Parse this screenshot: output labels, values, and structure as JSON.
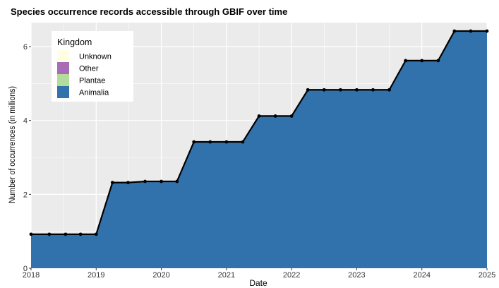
{
  "chart_data": {
    "type": "area",
    "title": "Species occurrence records accessible through GBIF over time",
    "xlabel": "Date",
    "ylabel": "Number of occurrences (in millions)",
    "xlim": [
      2018.0,
      2025.0
    ],
    "ylim": [
      0,
      6.65
    ],
    "x_ticks": [
      2018,
      2019,
      2020,
      2021,
      2022,
      2023,
      2024,
      2025
    ],
    "y_ticks": [
      0,
      2,
      4,
      6
    ],
    "x_tick_labels": [
      "2018",
      "2019",
      "2020",
      "2021",
      "2022",
      "2023",
      "2024",
      "2025"
    ],
    "y_tick_labels": [
      "0",
      "2",
      "4",
      "6"
    ],
    "grid": true,
    "legend": {
      "title": "Kingdom",
      "position": "top-left",
      "entries": [
        {
          "name": "Unknown",
          "color": "#FFFFE5"
        },
        {
          "name": "Other",
          "color": "#A86BB5"
        },
        {
          "name": "Plantae",
          "color": "#B2DB9C"
        },
        {
          "name": "Animalia",
          "color": "#3272AC"
        }
      ]
    },
    "x": [
      2018.0,
      2018.28,
      2018.53,
      2018.76,
      2019.0,
      2019.25,
      2019.49,
      2019.75,
      2020.0,
      2020.24,
      2020.5,
      2020.75,
      2021.0,
      2021.25,
      2021.5,
      2021.75,
      2022.0,
      2022.25,
      2022.5,
      2022.75,
      2023.0,
      2023.25,
      2023.5,
      2023.75,
      2024.0,
      2024.25,
      2024.5,
      2024.75,
      2025.0
    ],
    "series": [
      {
        "name": "Unknown",
        "values": [
          0,
          0,
          0,
          0,
          0,
          0,
          0,
          0,
          0,
          0,
          0,
          0,
          0,
          0,
          0,
          0,
          0,
          0,
          0,
          0,
          0,
          0,
          0,
          0,
          0,
          0,
          0,
          0,
          0
        ]
      },
      {
        "name": "Other",
        "values": [
          0,
          0,
          0,
          0,
          0,
          0,
          0,
          0,
          0,
          0,
          0,
          0,
          0,
          0,
          0,
          0,
          0,
          0,
          0,
          0,
          0,
          0,
          0,
          0,
          0,
          0,
          0,
          0,
          0
        ]
      },
      {
        "name": "Plantae",
        "values": [
          0,
          0,
          0,
          0,
          0,
          0,
          0,
          0,
          0,
          0,
          0,
          0,
          0,
          0,
          0,
          0,
          0,
          0,
          0,
          0,
          0,
          0,
          0,
          0,
          0,
          0,
          0,
          0,
          0
        ]
      },
      {
        "name": "Animalia",
        "values": [
          0.92,
          0.92,
          0.92,
          0.92,
          0.92,
          2.32,
          2.32,
          2.35,
          2.35,
          2.35,
          3.42,
          3.42,
          3.42,
          3.42,
          4.12,
          4.12,
          4.12,
          4.83,
          4.83,
          4.83,
          4.83,
          4.83,
          4.83,
          5.62,
          5.62,
          5.62,
          6.42,
          6.42,
          6.42
        ]
      }
    ],
    "colors": {
      "panel_bg": "#EBEBEB",
      "grid": "#FFFFFF",
      "area": "#3272AC",
      "line": "#000000"
    }
  }
}
